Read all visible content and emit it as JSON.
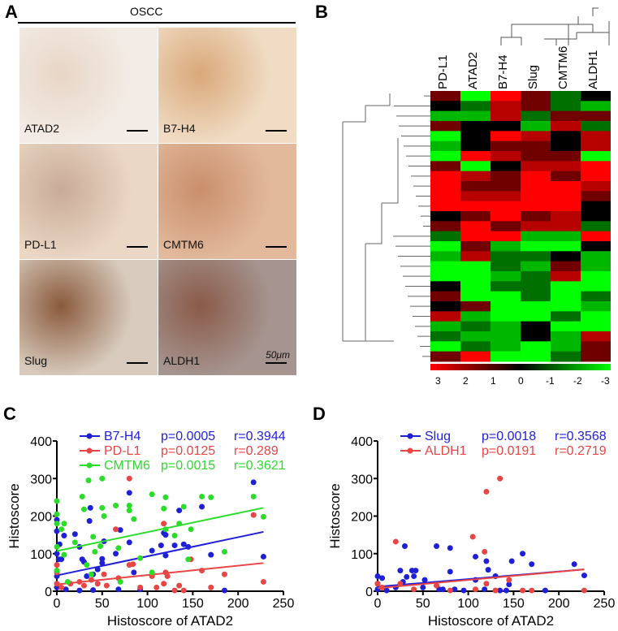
{
  "panelA": {
    "label": "A",
    "group": "OSCC",
    "tiles": [
      {
        "name": "ATAD2",
        "bg": [
          "#f3ece6",
          "#e8d6c6"
        ]
      },
      {
        "name": "B7-H4",
        "bg": [
          "#f0dcc4",
          "#d9a879"
        ]
      },
      {
        "name": "PD-L1",
        "bg": [
          "#ead7c4",
          "#c9ab98"
        ]
      },
      {
        "name": "CMTM6",
        "bg": [
          "#e2b99b",
          "#c98e6c"
        ]
      },
      {
        "name": "Slug",
        "bg": [
          "#d8cbbd",
          "#8a5a3c"
        ]
      },
      {
        "name": "ALDH1",
        "bg": [
          "#a5948f",
          "#8a5a48"
        ]
      }
    ],
    "scale_bar": "50μm"
  },
  "panelB": {
    "label": "B",
    "columns": [
      "PD-L1",
      "ATAD2",
      "B7-H4",
      "Slug",
      "CMTM6",
      "ALDH1"
    ],
    "legend": [
      "3",
      "2",
      "1",
      "0",
      "-1",
      "-2",
      "-3"
    ],
    "matrix": [
      [
        1,
        -3,
        3,
        1,
        -1,
        0
      ],
      [
        0,
        -1,
        2,
        1,
        -1,
        -2
      ],
      [
        -2,
        -2,
        2,
        -1,
        1,
        1
      ],
      [
        1,
        0,
        0,
        -2,
        2,
        -1
      ],
      [
        -3,
        0,
        3,
        2,
        0,
        2
      ],
      [
        -2,
        0,
        1,
        1,
        0,
        2
      ],
      [
        -3,
        3,
        2,
        1,
        1,
        -3
      ],
      [
        1,
        -3,
        0,
        2,
        2,
        3
      ],
      [
        3,
        2,
        1,
        3,
        1,
        3
      ],
      [
        3,
        1,
        1,
        3,
        3,
        2
      ],
      [
        3,
        2,
        2,
        3,
        3,
        1
      ],
      [
        3,
        3,
        3,
        3,
        3,
        0
      ],
      [
        0,
        1,
        3,
        1,
        2,
        0
      ],
      [
        1,
        3,
        1,
        2,
        2,
        -1
      ],
      [
        -1,
        3,
        3,
        -2,
        -2,
        3
      ],
      [
        -3,
        1,
        -2,
        -3,
        -3,
        0
      ],
      [
        -2,
        2,
        -1,
        -1,
        0,
        -2
      ],
      [
        -3,
        -3,
        -1,
        -2,
        1,
        -2
      ],
      [
        -3,
        -3,
        -2,
        -1,
        2,
        -3
      ],
      [
        0,
        -3,
        -1,
        -1,
        -3,
        -3
      ],
      [
        1,
        -3,
        -3,
        -1,
        -3,
        -1
      ],
      [
        0,
        1,
        -3,
        -3,
        -3,
        -2
      ],
      [
        2,
        -2,
        -3,
        -3,
        -1,
        -3
      ],
      [
        -2,
        -1,
        -2,
        0,
        -3,
        -3
      ],
      [
        -1,
        -2,
        -2,
        0,
        -2,
        2
      ],
      [
        -3,
        -1,
        -2,
        -3,
        -2,
        1
      ],
      [
        1,
        3,
        -3,
        -3,
        -1,
        1
      ]
    ]
  },
  "chart_data": [
    {
      "panel": "C",
      "type": "scatter",
      "xlabel": "Histoscore of ATAD2",
      "ylabel": "Histoscore",
      "xlim": [
        0,
        250
      ],
      "ylim": [
        0,
        400
      ],
      "xticks": [
        "0",
        "50",
        "100",
        "150",
        "200",
        "250"
      ],
      "yticks": [
        "0",
        "100",
        "200",
        "300",
        "400"
      ],
      "legend": "top",
      "series": [
        {
          "name": "B7-H4",
          "p": "p=0.0005",
          "r": "r=0.3944",
          "color": "#1f1fd6",
          "fit": [
            [
              0,
              42
            ],
            [
              228,
              158
            ]
          ],
          "points": [
            [
              0,
              190
            ],
            [
              0,
              160
            ],
            [
              0,
              100
            ],
            [
              0,
              40
            ],
            [
              0,
              10
            ],
            [
              3,
              125
            ],
            [
              2,
              85
            ],
            [
              5,
              85
            ],
            [
              8,
              148
            ],
            [
              10,
              5
            ],
            [
              20,
              152
            ],
            [
              25,
              118
            ],
            [
              28,
              85
            ],
            [
              30,
              78
            ],
            [
              33,
              40
            ],
            [
              37,
              222
            ],
            [
              36,
              187
            ],
            [
              40,
              45
            ],
            [
              45,
              58
            ],
            [
              50,
              86
            ],
            [
              50,
              75
            ],
            [
              52,
              133
            ],
            [
              65,
              100
            ],
            [
              68,
              5
            ],
            [
              70,
              163
            ],
            [
              80,
              262
            ],
            [
              80,
              130
            ],
            [
              85,
              50
            ],
            [
              92,
              5
            ],
            [
              105,
              108
            ],
            [
              115,
              122
            ],
            [
              118,
              155
            ],
            [
              120,
              150
            ],
            [
              120,
              95
            ],
            [
              130,
              122
            ],
            [
              135,
              215
            ],
            [
              140,
              125
            ],
            [
              145,
              118
            ],
            [
              160,
              225
            ],
            [
              170,
              97
            ],
            [
              185,
              2
            ],
            [
              217,
              290
            ],
            [
              228,
              92
            ],
            [
              25,
              2
            ],
            [
              40,
              3
            ]
          ]
        },
        {
          "name": "PD-L1",
          "p": "p=0.0125",
          "r": "r=0.289",
          "color": "#e84545",
          "fit": [
            [
              0,
              18
            ],
            [
              228,
              75
            ]
          ],
          "points": [
            [
              0,
              70
            ],
            [
              0,
              50
            ],
            [
              0,
              20
            ],
            [
              5,
              10
            ],
            [
              15,
              20
            ],
            [
              25,
              25
            ],
            [
              30,
              15
            ],
            [
              38,
              30
            ],
            [
              45,
              20
            ],
            [
              52,
              45
            ],
            [
              55,
              15
            ],
            [
              65,
              165
            ],
            [
              68,
              35
            ],
            [
              80,
              300
            ],
            [
              80,
              70
            ],
            [
              84,
              72
            ],
            [
              92,
              10
            ],
            [
              105,
              40
            ],
            [
              110,
              10
            ],
            [
              118,
              180
            ],
            [
              118,
              20
            ],
            [
              120,
              50
            ],
            [
              122,
              40
            ],
            [
              130,
              2
            ],
            [
              135,
              15
            ],
            [
              140,
              2
            ],
            [
              148,
              85
            ],
            [
              160,
              55
            ],
            [
              170,
              10
            ],
            [
              185,
              45
            ],
            [
              217,
              203
            ],
            [
              228,
              25
            ]
          ]
        },
        {
          "name": "CMTM6",
          "p": "p=0.0015",
          "r": "r=0.3621",
          "color": "#2bdc2b",
          "fit": [
            [
              0,
              107
            ],
            [
              228,
              222
            ]
          ],
          "points": [
            [
              0,
              240
            ],
            [
              0,
              205
            ],
            [
              0,
              180
            ],
            [
              0,
              118
            ],
            [
              0,
              55
            ],
            [
              5,
              165
            ],
            [
              8,
              180
            ],
            [
              8,
              97
            ],
            [
              12,
              25
            ],
            [
              20,
              130
            ],
            [
              28,
              252
            ],
            [
              30,
              218
            ],
            [
              33,
              70
            ],
            [
              35,
              295
            ],
            [
              38,
              45
            ],
            [
              40,
              145
            ],
            [
              42,
              105
            ],
            [
              48,
              120
            ],
            [
              50,
              300
            ],
            [
              50,
              222
            ],
            [
              52,
              200
            ],
            [
              65,
              228
            ],
            [
              68,
              115
            ],
            [
              70,
              25
            ],
            [
              80,
              228
            ],
            [
              80,
              215
            ],
            [
              85,
              192
            ],
            [
              92,
              88
            ],
            [
              105,
              258
            ],
            [
              105,
              50
            ],
            [
              118,
              220
            ],
            [
              120,
              250
            ],
            [
              120,
              165
            ],
            [
              130,
              148
            ],
            [
              135,
              180
            ],
            [
              140,
              225
            ],
            [
              145,
              85
            ],
            [
              148,
              165
            ],
            [
              160,
              252
            ],
            [
              170,
              250
            ],
            [
              185,
              105
            ],
            [
              217,
              252
            ],
            [
              228,
              198
            ]
          ]
        }
      ]
    },
    {
      "panel": "D",
      "type": "scatter",
      "xlabel": "Histoscore of ATAD2",
      "ylabel": "Histoscore",
      "xlim": [
        0,
        250
      ],
      "ylim": [
        0,
        400
      ],
      "xticks": [
        "0",
        "50",
        "100",
        "150",
        "200",
        "250"
      ],
      "yticks": [
        "0",
        "100",
        "200",
        "300",
        "400"
      ],
      "legend": "top",
      "series": [
        {
          "name": "Slug",
          "p": "p=0.0018",
          "r": "r=0.3568",
          "color": "#1f1fd6",
          "fit": [
            [
              0,
              12
            ],
            [
              228,
              58
            ]
          ],
          "points": [
            [
              0,
              40
            ],
            [
              0,
              20
            ],
            [
              0,
              5
            ],
            [
              5,
              35
            ],
            [
              10,
              2
            ],
            [
              20,
              10
            ],
            [
              25,
              55
            ],
            [
              28,
              25
            ],
            [
              30,
              120
            ],
            [
              32,
              38
            ],
            [
              38,
              55
            ],
            [
              40,
              40
            ],
            [
              42,
              55
            ],
            [
              50,
              10
            ],
            [
              52,
              30
            ],
            [
              65,
              120
            ],
            [
              68,
              5
            ],
            [
              72,
              5
            ],
            [
              80,
              115
            ],
            [
              80,
              52
            ],
            [
              85,
              5
            ],
            [
              95,
              2
            ],
            [
              108,
              30
            ],
            [
              108,
              92
            ],
            [
              118,
              5
            ],
            [
              120,
              80
            ],
            [
              122,
              57
            ],
            [
              130,
              40
            ],
            [
              135,
              2
            ],
            [
              142,
              2
            ],
            [
              145,
              18
            ],
            [
              148,
              80
            ],
            [
              160,
              100
            ],
            [
              170,
              72
            ],
            [
              185,
              2
            ],
            [
              217,
              72
            ],
            [
              228,
              42
            ]
          ]
        },
        {
          "name": "ALDH1",
          "p": "p=0.0191",
          "r": "r=0.2719",
          "color": "#e84545",
          "fit": [
            [
              0,
              8
            ],
            [
              228,
              58
            ]
          ],
          "points": [
            [
              0,
              20
            ],
            [
              5,
              10
            ],
            [
              20,
              132
            ],
            [
              25,
              20
            ],
            [
              40,
              5
            ],
            [
              65,
              15
            ],
            [
              80,
              2
            ],
            [
              105,
              145
            ],
            [
              108,
              5
            ],
            [
              118,
              105
            ],
            [
              120,
              20
            ],
            [
              120,
              265
            ],
            [
              135,
              300
            ],
            [
              130,
              2
            ],
            [
              145,
              30
            ],
            [
              160,
              2
            ],
            [
              170,
              2
            ],
            [
              228,
              2
            ]
          ]
        }
      ]
    }
  ]
}
